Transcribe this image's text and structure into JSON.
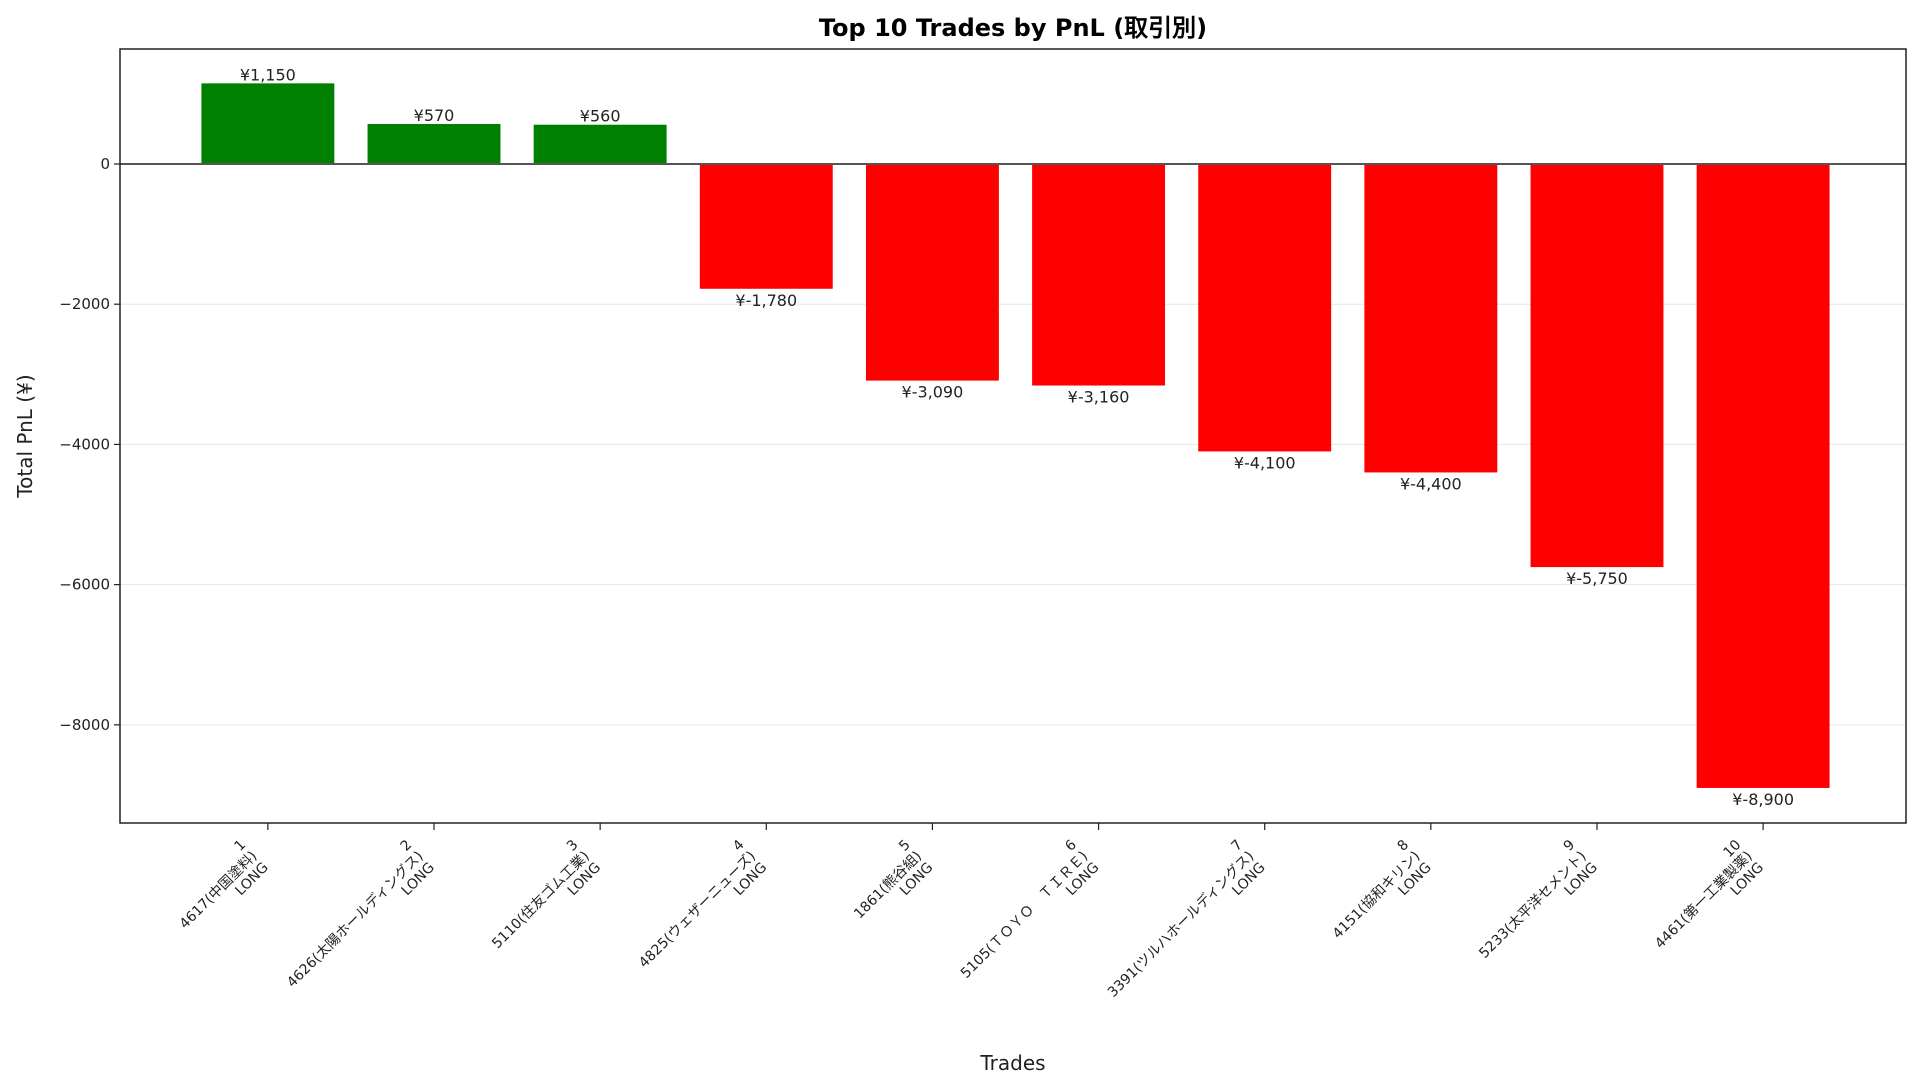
{
  "chart_data": {
    "type": "bar",
    "title": "Top 10 Trades by PnL (取引別)",
    "xlabel": "Trades",
    "ylabel": "Total PnL (¥)",
    "categories": [
      "1\n4617(中国塗料)\nLONG",
      "2\n4626(太陽ホールディングス)\nLONG",
      "3\n5110(住友ゴム工業)\nLONG",
      "4\n4825(ウェザーニューズ)\nLONG",
      "5\n1861(熊谷組)\nLONG",
      "6\n5105(ＴＯＹＯ　ＴＩＲＥ)\nLONG",
      "7\n3391(ツルハホールディングス)\nLONG",
      "8\n4151(協和キリン)\nLONG",
      "9\n5233(太平洋セメント)\nLONG",
      "10\n4461(第一工業製薬)\nLONG"
    ],
    "values": [
      1150,
      570,
      560,
      -1780,
      -3090,
      -3160,
      -4100,
      -4400,
      -5750,
      -8900
    ],
    "value_labels": [
      "¥1,150",
      "¥570",
      "¥560",
      "¥-1,780",
      "¥-3,090",
      "¥-3,160",
      "¥-4,100",
      "¥-4,400",
      "¥-5,750",
      "¥-8,900"
    ],
    "ylim": [
      -9400,
      1640
    ],
    "yticks": [
      0,
      -2000,
      -4000,
      -6000,
      -8000
    ],
    "ytick_labels": [
      "0",
      "−2000",
      "−4000",
      "−6000",
      "−8000"
    ],
    "grid": "horizontal",
    "colors": {
      "positive": "#008000",
      "negative": "#ff0000",
      "zero_line": "#555555",
      "grid": "#e6e6e6"
    },
    "legend": "none"
  }
}
